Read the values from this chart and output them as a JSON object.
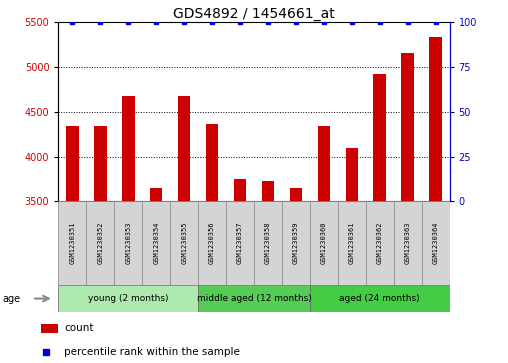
{
  "title": "GDS4892 / 1454661_at",
  "samples": [
    "GSM1230351",
    "GSM1230352",
    "GSM1230353",
    "GSM1230354",
    "GSM1230355",
    "GSM1230356",
    "GSM1230357",
    "GSM1230358",
    "GSM1230359",
    "GSM1230360",
    "GSM1230361",
    "GSM1230362",
    "GSM1230363",
    "GSM1230364"
  ],
  "counts": [
    4340,
    4345,
    4670,
    3650,
    4670,
    4365,
    3750,
    3730,
    3645,
    4345,
    4100,
    4920,
    5155,
    5330
  ],
  "percentile": [
    100,
    100,
    100,
    100,
    100,
    100,
    100,
    100,
    100,
    100,
    100,
    100,
    100,
    100
  ],
  "ylim_left": [
    3500,
    5500
  ],
  "ylim_right": [
    0,
    100
  ],
  "yticks_left": [
    3500,
    4000,
    4500,
    5000,
    5500
  ],
  "yticks_right": [
    0,
    25,
    50,
    75,
    100
  ],
  "groups": [
    {
      "label": "young (2 months)",
      "start": 0,
      "end": 4,
      "color": "#aeeaae"
    },
    {
      "label": "middle aged (12 months)",
      "start": 5,
      "end": 8,
      "color": "#55cc55"
    },
    {
      "label": "aged (24 months)",
      "start": 9,
      "end": 13,
      "color": "#44cc44"
    }
  ],
  "bar_color": "#cc0000",
  "dot_color": "#0000cc",
  "bar_width": 0.45,
  "background_color": "#ffffff",
  "title_fontsize": 10,
  "tick_fontsize": 7,
  "age_label": "age",
  "legend_count_label": "count",
  "legend_percentile_label": "percentile rank within the sample"
}
